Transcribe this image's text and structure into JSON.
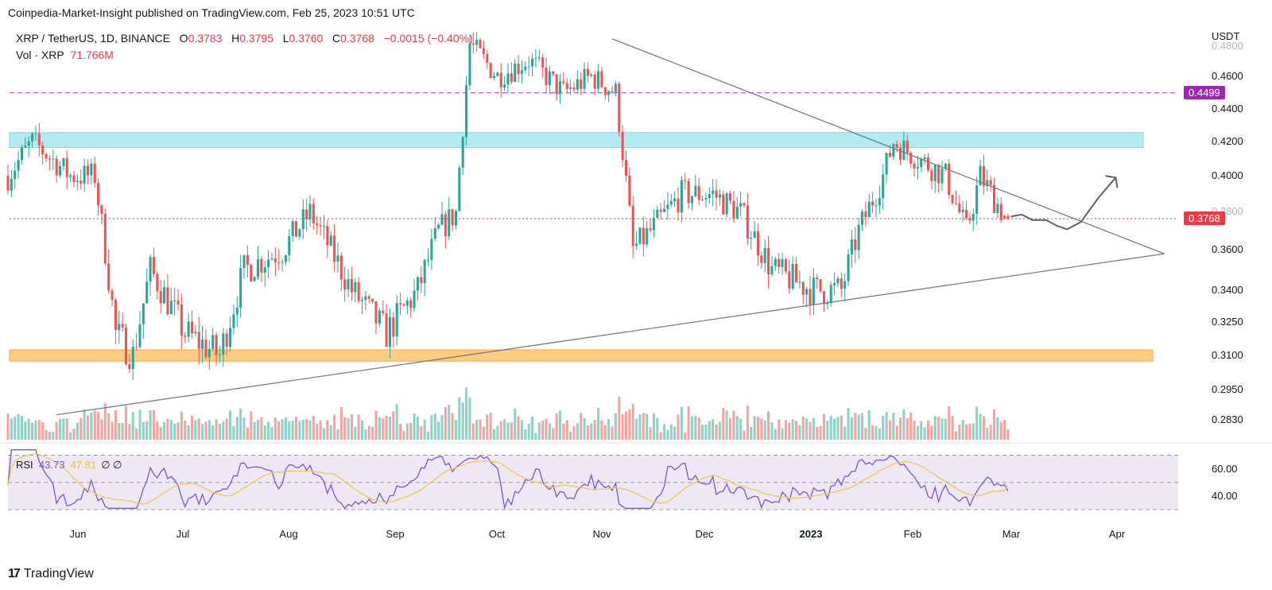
{
  "publisher": "Coinpedia-Market-Insight published on TradingView.com, Feb 25, 2023 10:51 UTC",
  "brand": {
    "logo_icon": "tradingview-logo-icon",
    "name": "TradingView"
  },
  "legend": {
    "symbol": "XRP / TetherUS, 1D, BINANCE",
    "open_label": "O",
    "open": "0.3783",
    "high_label": "H",
    "high": "0.3795",
    "low_label": "L",
    "low": "0.3760",
    "close_label": "C",
    "close": "0.3768",
    "change": "−0.0015 (−0.40%)",
    "vol_label": "Vol · XRP",
    "vol": "71.766M",
    "rsi_label": "RSI",
    "rsi": "43.73",
    "rsi_ma": "47.81",
    "eye_icon": "∅ ∅"
  },
  "colors": {
    "up": "#26a69a",
    "down": "#ef5350",
    "vol_up": "#8fd1c7",
    "vol_down": "#f5a3a1",
    "resistance_zone": "#b2ebf2",
    "support_zone": "#ffcc80",
    "level_line": "#c44fd6",
    "level_tag": "#9c27b0",
    "price_tag": "#f23645",
    "rsi_line": "#7e57c2",
    "rsi_ma": "#f2c94c",
    "rsi_bg": "#ede7f6",
    "trendline": "#787b86"
  },
  "price_axis": {
    "unit": "USDT",
    "ticks": [
      "0.4800",
      "0.4600",
      "0.4400",
      "0.4200",
      "0.4000",
      "0.3800",
      "0.3600",
      "0.3400",
      "0.3250",
      "0.3100",
      "0.2950",
      "0.2830"
    ],
    "level_tag": "0.4499",
    "price_tag": "0.3768"
  },
  "rsi_axis": {
    "ticks": [
      "60.00",
      "40.00"
    ]
  },
  "time_axis": {
    "labels": [
      "Jun",
      "Jul",
      "Aug",
      "Sep",
      "Oct",
      "Nov",
      "Dec",
      "2023",
      "Feb",
      "Mar",
      "Apr"
    ]
  },
  "chart_data": {
    "type": "candlestick",
    "title": "XRP / TetherUS, 1D, BINANCE",
    "ylabel": "USDT",
    "ylim": [
      0.283,
      0.485
    ],
    "x_range": [
      "2022-05-13",
      "2023-04-15"
    ],
    "key_points": [
      [
        "2022-05-13",
        0.4
      ],
      [
        "2022-05-20",
        0.42
      ],
      [
        "2022-05-31",
        0.4
      ],
      [
        "2022-06-07",
        0.4
      ],
      [
        "2022-06-13",
        0.32
      ],
      [
        "2022-06-18",
        0.31
      ],
      [
        "2022-06-23",
        0.35
      ],
      [
        "2022-07-03",
        0.32
      ],
      [
        "2022-07-13",
        0.31
      ],
      [
        "2022-07-20",
        0.35
      ],
      [
        "2022-07-31",
        0.36
      ],
      [
        "2022-08-08",
        0.38
      ],
      [
        "2022-08-20",
        0.34
      ],
      [
        "2022-08-30",
        0.32
      ],
      [
        "2022-09-08",
        0.34
      ],
      [
        "2022-09-14",
        0.37
      ],
      [
        "2022-09-19",
        0.38
      ],
      [
        "2022-09-23",
        0.48
      ],
      [
        "2022-10-01",
        0.46
      ],
      [
        "2022-10-10",
        0.47
      ],
      [
        "2022-10-20",
        0.45
      ],
      [
        "2022-10-28",
        0.46
      ],
      [
        "2022-11-04",
        0.45
      ],
      [
        "2022-11-09",
        0.36
      ],
      [
        "2022-11-14",
        0.37
      ],
      [
        "2022-11-23",
        0.39
      ],
      [
        "2022-12-02",
        0.39
      ],
      [
        "2022-12-10",
        0.38
      ],
      [
        "2022-12-19",
        0.35
      ],
      [
        "2022-12-31",
        0.34
      ],
      [
        "2023-01-08",
        0.34
      ],
      [
        "2023-01-13",
        0.37
      ],
      [
        "2023-01-20",
        0.4
      ],
      [
        "2023-01-23",
        0.42
      ],
      [
        "2023-01-30",
        0.41
      ],
      [
        "2023-02-07",
        0.4
      ],
      [
        "2023-02-13",
        0.37
      ],
      [
        "2023-02-17",
        0.4
      ],
      [
        "2023-02-24",
        0.3783
      ],
      [
        "2023-02-25",
        0.3768
      ]
    ],
    "last_candle": {
      "date": "2023-02-25",
      "open": 0.3783,
      "high": 0.3795,
      "low": 0.376,
      "close": 0.3768
    },
    "horizontal_level": 0.4499,
    "resistance_zone": [
      0.4165,
      0.4255
    ],
    "support_zone": [
      0.3075,
      0.3125
    ],
    "descending_trendline": [
      [
        "2022-11-03",
        0.483
      ],
      [
        "2023-04-11",
        0.358
      ]
    ],
    "ascending_trendline": [
      [
        "2022-05-27",
        0.285
      ],
      [
        "2023-04-11",
        0.358
      ]
    ],
    "projected_path": [
      [
        "2023-02-26",
        0.378
      ],
      [
        "2023-03-01",
        0.379
      ],
      [
        "2023-03-04",
        0.376
      ],
      [
        "2023-03-08",
        0.376
      ],
      [
        "2023-03-11",
        0.373
      ],
      [
        "2023-03-14",
        0.371
      ],
      [
        "2023-03-18",
        0.375
      ],
      [
        "2023-03-23",
        0.388
      ],
      [
        "2023-03-28",
        0.399
      ]
    ],
    "volume_last": "71.766M",
    "rsi": {
      "last": 43.73,
      "ma_last": 47.81,
      "ylim": [
        30,
        75
      ],
      "upper_band": 70,
      "mid": 50,
      "lower_band": 30
    }
  }
}
